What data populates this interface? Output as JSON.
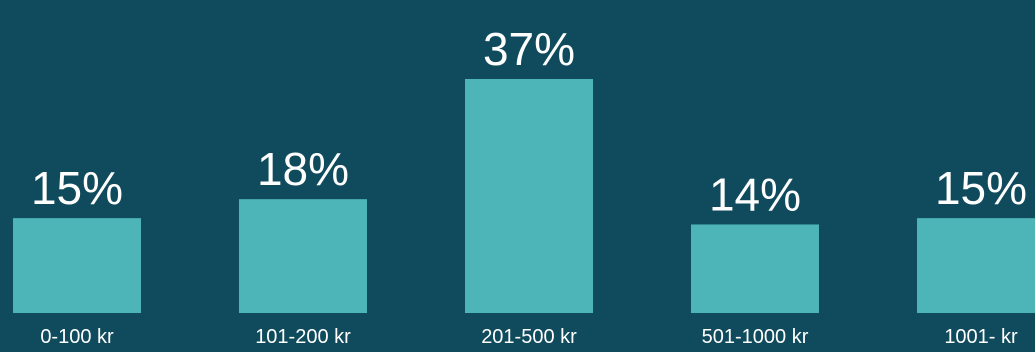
{
  "colors": {
    "background": "#0f4b5c",
    "bar": "#4db5b8",
    "text": "#ffffff"
  },
  "chart_data": {
    "type": "bar",
    "title": "",
    "xlabel": "",
    "ylabel": "",
    "grid": false,
    "categories": [
      "0-100 kr",
      "101-200 kr",
      "201-500 kr",
      "501-1000 kr",
      "1001- kr"
    ],
    "values": [
      15,
      18,
      37,
      14,
      15
    ],
    "value_labels": [
      "15%",
      "18%",
      "37%",
      "14%",
      "15%"
    ],
    "ylim": [
      0,
      37
    ]
  }
}
